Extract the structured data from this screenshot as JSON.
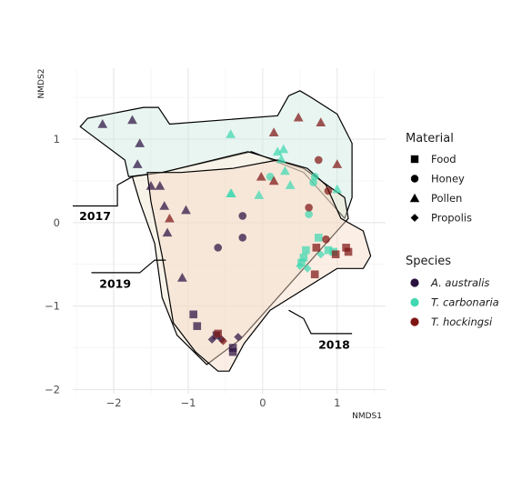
{
  "chart_data": {
    "type": "scatter",
    "xlabel": "NMDS1",
    "ylabel": "NMDS2",
    "xlim": [
      -2.55,
      1.65
    ],
    "ylim": [
      -2.05,
      1.85
    ],
    "xticks": [
      -2,
      -1,
      0,
      1
    ],
    "yticks": [
      -2,
      -1,
      0,
      1
    ],
    "grid": true,
    "legend_position": "right",
    "colors": {
      "A. australis": "#2a1140",
      "T. carbonaria": "#3fd8b0",
      "T. hockingsi": "#7e1513"
    },
    "legend": {
      "material_title": "Material",
      "materials": [
        {
          "label": "Food",
          "shape": "square"
        },
        {
          "label": "Honey",
          "shape": "circle"
        },
        {
          "label": "Pollen",
          "shape": "triangle"
        },
        {
          "label": "Propolis",
          "shape": "diamond"
        }
      ],
      "species_title": "Species",
      "species": [
        {
          "label": "A. australis"
        },
        {
          "label": "T. carbonaria"
        },
        {
          "label": "T. hockingsi"
        }
      ]
    },
    "groups": [
      {
        "label": "2017",
        "fill": "#cfe8df",
        "hull": [
          [
            -2.45,
            1.15
          ],
          [
            -2.35,
            1.25
          ],
          [
            -1.6,
            1.38
          ],
          [
            -1.4,
            1.38
          ],
          [
            -1.25,
            1.18
          ],
          [
            0.2,
            1.28
          ],
          [
            0.35,
            1.52
          ],
          [
            0.5,
            1.58
          ],
          [
            0.65,
            1.5
          ],
          [
            1.0,
            1.3
          ],
          [
            1.2,
            0.95
          ],
          [
            1.2,
            0.3
          ],
          [
            1.1,
            0.05
          ],
          [
            0.55,
            0.6
          ],
          [
            -0.15,
            0.85
          ],
          [
            -1.35,
            0.6
          ],
          [
            -1.8,
            0.55
          ],
          [
            -1.85,
            0.75
          ]
        ]
      },
      {
        "label": "2019",
        "fill": "#eee5cf",
        "hull": [
          [
            -1.75,
            0.55
          ],
          [
            -1.35,
            0.6
          ],
          [
            -0.2,
            0.85
          ],
          [
            0.55,
            0.65
          ],
          [
            1.1,
            0.3
          ],
          [
            1.15,
            0.05
          ],
          [
            0.6,
            -0.5
          ],
          [
            -0.3,
            -1.4
          ],
          [
            -0.75,
            -1.7
          ],
          [
            -1.15,
            -1.35
          ],
          [
            -1.35,
            -0.9
          ],
          [
            -1.45,
            -0.25
          ],
          [
            -1.65,
            0.25
          ]
        ]
      },
      {
        "label": "2018",
        "fill": "#f6d9c5",
        "hull": [
          [
            -1.55,
            0.6
          ],
          [
            -1.5,
            0.25
          ],
          [
            -1.35,
            -0.4
          ],
          [
            -1.2,
            -1.2
          ],
          [
            -0.9,
            -1.55
          ],
          [
            -0.6,
            -1.78
          ],
          [
            -0.45,
            -1.78
          ],
          [
            -0.25,
            -1.45
          ],
          [
            0.1,
            -1.05
          ],
          [
            0.55,
            -0.8
          ],
          [
            1.0,
            -0.55
          ],
          [
            1.35,
            -0.55
          ],
          [
            1.45,
            -0.4
          ],
          [
            1.35,
            -0.1
          ],
          [
            1.05,
            0.05
          ],
          [
            0.85,
            0.45
          ],
          [
            0.6,
            0.65
          ],
          [
            0.2,
            0.75
          ],
          [
            -0.4,
            0.65
          ],
          [
            -1.1,
            0.6
          ]
        ]
      }
    ],
    "callouts": [
      {
        "label": "2017",
        "line": [
          [
            -2.55,
            0.2
          ],
          [
            -1.95,
            0.2
          ],
          [
            -1.95,
            0.45
          ],
          [
            -1.75,
            0.55
          ]
        ],
        "text_at": [
          -2.25,
          0.03
        ]
      },
      {
        "label": "2019",
        "line": [
          [
            -2.3,
            -0.6
          ],
          [
            -1.65,
            -0.6
          ],
          [
            -1.45,
            -0.45
          ],
          [
            -1.3,
            -0.45
          ]
        ],
        "text_at": [
          -1.98,
          -0.78
        ]
      },
      {
        "label": "2018",
        "line": [
          [
            1.2,
            -1.33
          ],
          [
            0.65,
            -1.33
          ],
          [
            0.55,
            -1.15
          ],
          [
            0.35,
            -1.05
          ]
        ],
        "text_at": [
          0.96,
          -1.51
        ]
      }
    ],
    "points": [
      {
        "x": -2.15,
        "y": 1.18,
        "species": "A. australis",
        "material": "Pollen"
      },
      {
        "x": -1.75,
        "y": 1.23,
        "species": "A. australis",
        "material": "Pollen"
      },
      {
        "x": -1.65,
        "y": 0.95,
        "species": "A. australis",
        "material": "Pollen"
      },
      {
        "x": -1.68,
        "y": 0.7,
        "species": "A. australis",
        "material": "Pollen"
      },
      {
        "x": -1.5,
        "y": 0.44,
        "species": "A. australis",
        "material": "Pollen"
      },
      {
        "x": -1.38,
        "y": 0.44,
        "species": "A. australis",
        "material": "Pollen"
      },
      {
        "x": -1.32,
        "y": 0.2,
        "species": "A. australis",
        "material": "Pollen"
      },
      {
        "x": -1.28,
        "y": -0.12,
        "species": "A. australis",
        "material": "Pollen"
      },
      {
        "x": -1.03,
        "y": 0.15,
        "species": "A. australis",
        "material": "Pollen"
      },
      {
        "x": -1.08,
        "y": -0.66,
        "species": "A. australis",
        "material": "Pollen"
      },
      {
        "x": -0.6,
        "y": -0.3,
        "species": "A. australis",
        "material": "Honey"
      },
      {
        "x": -0.27,
        "y": 0.08,
        "species": "A. australis",
        "material": "Honey"
      },
      {
        "x": -0.27,
        "y": -0.18,
        "species": "A. australis",
        "material": "Honey"
      },
      {
        "x": -0.93,
        "y": -1.1,
        "species": "A. australis",
        "material": "Food"
      },
      {
        "x": -0.88,
        "y": -1.24,
        "species": "A. australis",
        "material": "Food"
      },
      {
        "x": -0.62,
        "y": -1.35,
        "species": "A. australis",
        "material": "Food"
      },
      {
        "x": -0.4,
        "y": -1.5,
        "species": "A. australis",
        "material": "Food"
      },
      {
        "x": -0.4,
        "y": -1.55,
        "species": "A. australis",
        "material": "Food"
      },
      {
        "x": -0.68,
        "y": -1.4,
        "species": "A. australis",
        "material": "Propolis"
      },
      {
        "x": -0.55,
        "y": -1.4,
        "species": "A. australis",
        "material": "Propolis"
      },
      {
        "x": -0.33,
        "y": -1.37,
        "species": "A. australis",
        "material": "Propolis"
      },
      {
        "x": -0.42,
        "y": 0.35,
        "species": "T. carbonaria",
        "material": "Pollen"
      },
      {
        "x": -0.43,
        "y": 1.06,
        "species": "T. carbonaria",
        "material": "Pollen"
      },
      {
        "x": -0.43,
        "y": 0.35,
        "species": "T. carbonaria",
        "material": "Pollen"
      },
      {
        "x": -0.05,
        "y": 0.33,
        "species": "T. carbonaria",
        "material": "Pollen"
      },
      {
        "x": 0.2,
        "y": 0.85,
        "species": "T. carbonaria",
        "material": "Pollen"
      },
      {
        "x": 0.28,
        "y": 0.88,
        "species": "T. carbonaria",
        "material": "Pollen"
      },
      {
        "x": 0.3,
        "y": 0.62,
        "species": "T. carbonaria",
        "material": "Pollen"
      },
      {
        "x": 0.37,
        "y": 0.45,
        "species": "T. carbonaria",
        "material": "Pollen"
      },
      {
        "x": 0.25,
        "y": 0.76,
        "species": "T. carbonaria",
        "material": "Pollen"
      },
      {
        "x": 0.7,
        "y": 0.55,
        "species": "T. carbonaria",
        "material": "Honey"
      },
      {
        "x": 0.68,
        "y": 0.48,
        "species": "T. carbonaria",
        "material": "Honey"
      },
      {
        "x": 0.62,
        "y": 0.1,
        "species": "T. carbonaria",
        "material": "Honey"
      },
      {
        "x": 0.1,
        "y": 0.55,
        "species": "T. carbonaria",
        "material": "Honey"
      },
      {
        "x": 0.55,
        "y": -0.42,
        "species": "T. carbonaria",
        "material": "Food"
      },
      {
        "x": 0.52,
        "y": -0.48,
        "species": "T. carbonaria",
        "material": "Food"
      },
      {
        "x": 0.58,
        "y": -0.33,
        "species": "T. carbonaria",
        "material": "Food"
      },
      {
        "x": 0.75,
        "y": -0.18,
        "species": "T. carbonaria",
        "material": "Food"
      },
      {
        "x": 0.88,
        "y": -0.33,
        "species": "T. carbonaria",
        "material": "Food"
      },
      {
        "x": 0.95,
        "y": -0.35,
        "species": "T. carbonaria",
        "material": "Food"
      },
      {
        "x": 1.0,
        "y": 0.4,
        "species": "T. carbonaria",
        "material": "Pollen"
      },
      {
        "x": 0.5,
        "y": -0.52,
        "species": "T. carbonaria",
        "material": "Propolis"
      },
      {
        "x": 0.6,
        "y": -0.55,
        "species": "T. carbonaria",
        "material": "Propolis"
      },
      {
        "x": 0.78,
        "y": -0.38,
        "species": "T. carbonaria",
        "material": "Propolis"
      },
      {
        "x": 0.15,
        "y": 1.08,
        "species": "T. hockingsi",
        "material": "Pollen"
      },
      {
        "x": 0.48,
        "y": 1.26,
        "species": "T. hockingsi",
        "material": "Pollen"
      },
      {
        "x": 0.78,
        "y": 1.2,
        "species": "T. hockingsi",
        "material": "Pollen"
      },
      {
        "x": 1.0,
        "y": 0.7,
        "species": "T. hockingsi",
        "material": "Pollen"
      },
      {
        "x": 0.15,
        "y": 0.5,
        "species": "T. hockingsi",
        "material": "Pollen"
      },
      {
        "x": -0.02,
        "y": 0.55,
        "species": "T. hockingsi",
        "material": "Pollen"
      },
      {
        "x": -1.25,
        "y": 0.05,
        "species": "T. hockingsi",
        "material": "Pollen"
      },
      {
        "x": 0.75,
        "y": 0.75,
        "species": "T. hockingsi",
        "material": "Honey"
      },
      {
        "x": 0.88,
        "y": 0.38,
        "species": "T. hockingsi",
        "material": "Honey"
      },
      {
        "x": 0.62,
        "y": 0.18,
        "species": "T. hockingsi",
        "material": "Honey"
      },
      {
        "x": 0.85,
        "y": -0.2,
        "species": "T. hockingsi",
        "material": "Honey"
      },
      {
        "x": 0.72,
        "y": -0.3,
        "species": "T. hockingsi",
        "material": "Food"
      },
      {
        "x": 1.12,
        "y": -0.3,
        "species": "T. hockingsi",
        "material": "Food"
      },
      {
        "x": 1.15,
        "y": -0.35,
        "species": "T. hockingsi",
        "material": "Food"
      },
      {
        "x": 0.98,
        "y": -0.38,
        "species": "T. hockingsi",
        "material": "Food"
      },
      {
        "x": 0.7,
        "y": -0.62,
        "species": "T. hockingsi",
        "material": "Food"
      },
      {
        "x": -0.6,
        "y": -1.33,
        "species": "T. hockingsi",
        "material": "Food"
      },
      {
        "x": -0.53,
        "y": -1.42,
        "species": "T. hockingsi",
        "material": "Propolis"
      }
    ]
  }
}
